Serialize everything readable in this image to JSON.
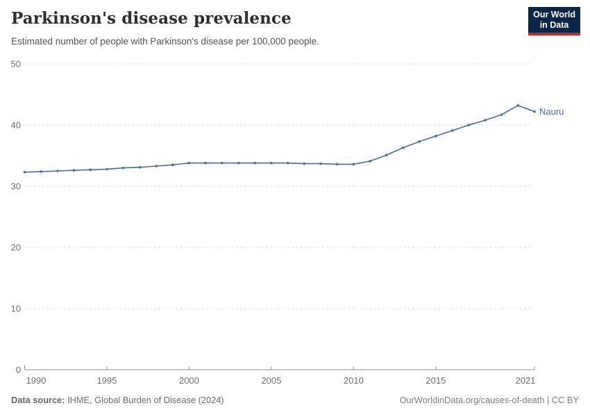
{
  "header": {
    "title": "Parkinson's disease prevalence",
    "subtitle": "Estimated number of people with Parkinson's disease per 100,000 people.",
    "logo": {
      "line1": "Our World",
      "line2": "in Data"
    }
  },
  "chart_data": {
    "type": "line",
    "title": "Parkinson's disease prevalence",
    "subtitle": "Estimated number of people with Parkinson's disease per 100,000 people.",
    "xlabel": "",
    "ylabel": "",
    "xlim": [
      1990,
      2021
    ],
    "ylim": [
      0,
      50
    ],
    "x_ticks": [
      1990,
      1995,
      2000,
      2005,
      2010,
      2015,
      2021
    ],
    "y_ticks": [
      0,
      10,
      20,
      30,
      40,
      50
    ],
    "grid": "horizontal-dashed",
    "legend_position": "end-of-line-label",
    "series": [
      {
        "name": "Nauru",
        "color": "#4C6A9C",
        "x": [
          1990,
          1991,
          1992,
          1993,
          1994,
          1995,
          1996,
          1997,
          1998,
          1999,
          2000,
          2001,
          2002,
          2003,
          2004,
          2005,
          2006,
          2007,
          2008,
          2009,
          2010,
          2011,
          2012,
          2013,
          2014,
          2015,
          2016,
          2017,
          2018,
          2019,
          2020,
          2021
        ],
        "values": [
          32.3,
          32.4,
          32.5,
          32.6,
          32.7,
          32.8,
          33.0,
          33.1,
          33.3,
          33.5,
          33.8,
          33.8,
          33.8,
          33.8,
          33.8,
          33.8,
          33.8,
          33.7,
          33.7,
          33.6,
          33.6,
          34.1,
          35.1,
          36.3,
          37.3,
          38.2,
          39.1,
          40.0,
          40.8,
          41.7,
          43.2,
          42.2
        ]
      }
    ]
  },
  "footer": {
    "source_label": "Data source:",
    "source_text": "IHME, Global Burden of Disease (2024)",
    "credit": "OurWorldinData.org/causes-of-death | CC BY"
  },
  "colors": {
    "series_blue": "#4C6A9C",
    "gridline": "#dadada",
    "axis": "#8f8f8f",
    "tick_text": "#6f6f6f",
    "logo_navy": "#0c264a",
    "logo_red": "#c82823"
  }
}
